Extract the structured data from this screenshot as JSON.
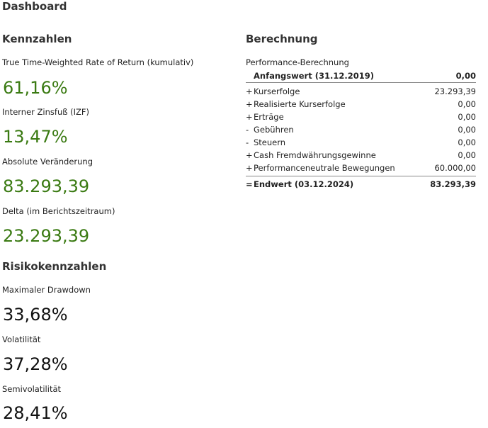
{
  "title": "Dashboard",
  "kennzahlen": {
    "heading": "Kennzahlen",
    "items": [
      {
        "label": "True Time-Weighted Rate of Return (kumulativ)",
        "value": "61,16%"
      },
      {
        "label": "Interner Zinsfuß (IZF)",
        "value": "13,47%"
      },
      {
        "label": "Absolute Veränderung",
        "value": "83.293,39"
      },
      {
        "label": "Delta (im Berichtszeitraum)",
        "value": "23.293,39"
      }
    ]
  },
  "risiko": {
    "heading": "Risikokennzahlen",
    "items": [
      {
        "label": "Maximaler Drawdown",
        "value": "33,68%"
      },
      {
        "label": "Volatilität",
        "value": "37,28%"
      },
      {
        "label": "Semivolatilität",
        "value": "28,41%"
      }
    ]
  },
  "berechnung": {
    "heading": "Berechnung",
    "subheading": "Performance-Berechnung",
    "start": {
      "label": "Anfangswert (31.12.2019)",
      "value": "0,00"
    },
    "rows": [
      {
        "op": "+",
        "label": "Kurserfolge",
        "value": "23.293,39"
      },
      {
        "op": "+",
        "label": "Realisierte Kurserfolge",
        "value": "0,00"
      },
      {
        "op": "+",
        "label": "Erträge",
        "value": "0,00"
      },
      {
        "op": "-",
        "label": "Gebühren",
        "value": "0,00"
      },
      {
        "op": "-",
        "label": "Steuern",
        "value": "0,00"
      },
      {
        "op": "+",
        "label": "Cash Fremdwährungsgewinne",
        "value": "0,00"
      },
      {
        "op": "+",
        "label": "Performanceneutrale Bewegungen",
        "value": "60.000,00"
      }
    ],
    "end": {
      "op": "=",
      "label": "Endwert (03.12.2024)",
      "value": "83.293,39"
    }
  },
  "colors": {
    "positive": "#3a7a12",
    "neutral": "#111111"
  }
}
